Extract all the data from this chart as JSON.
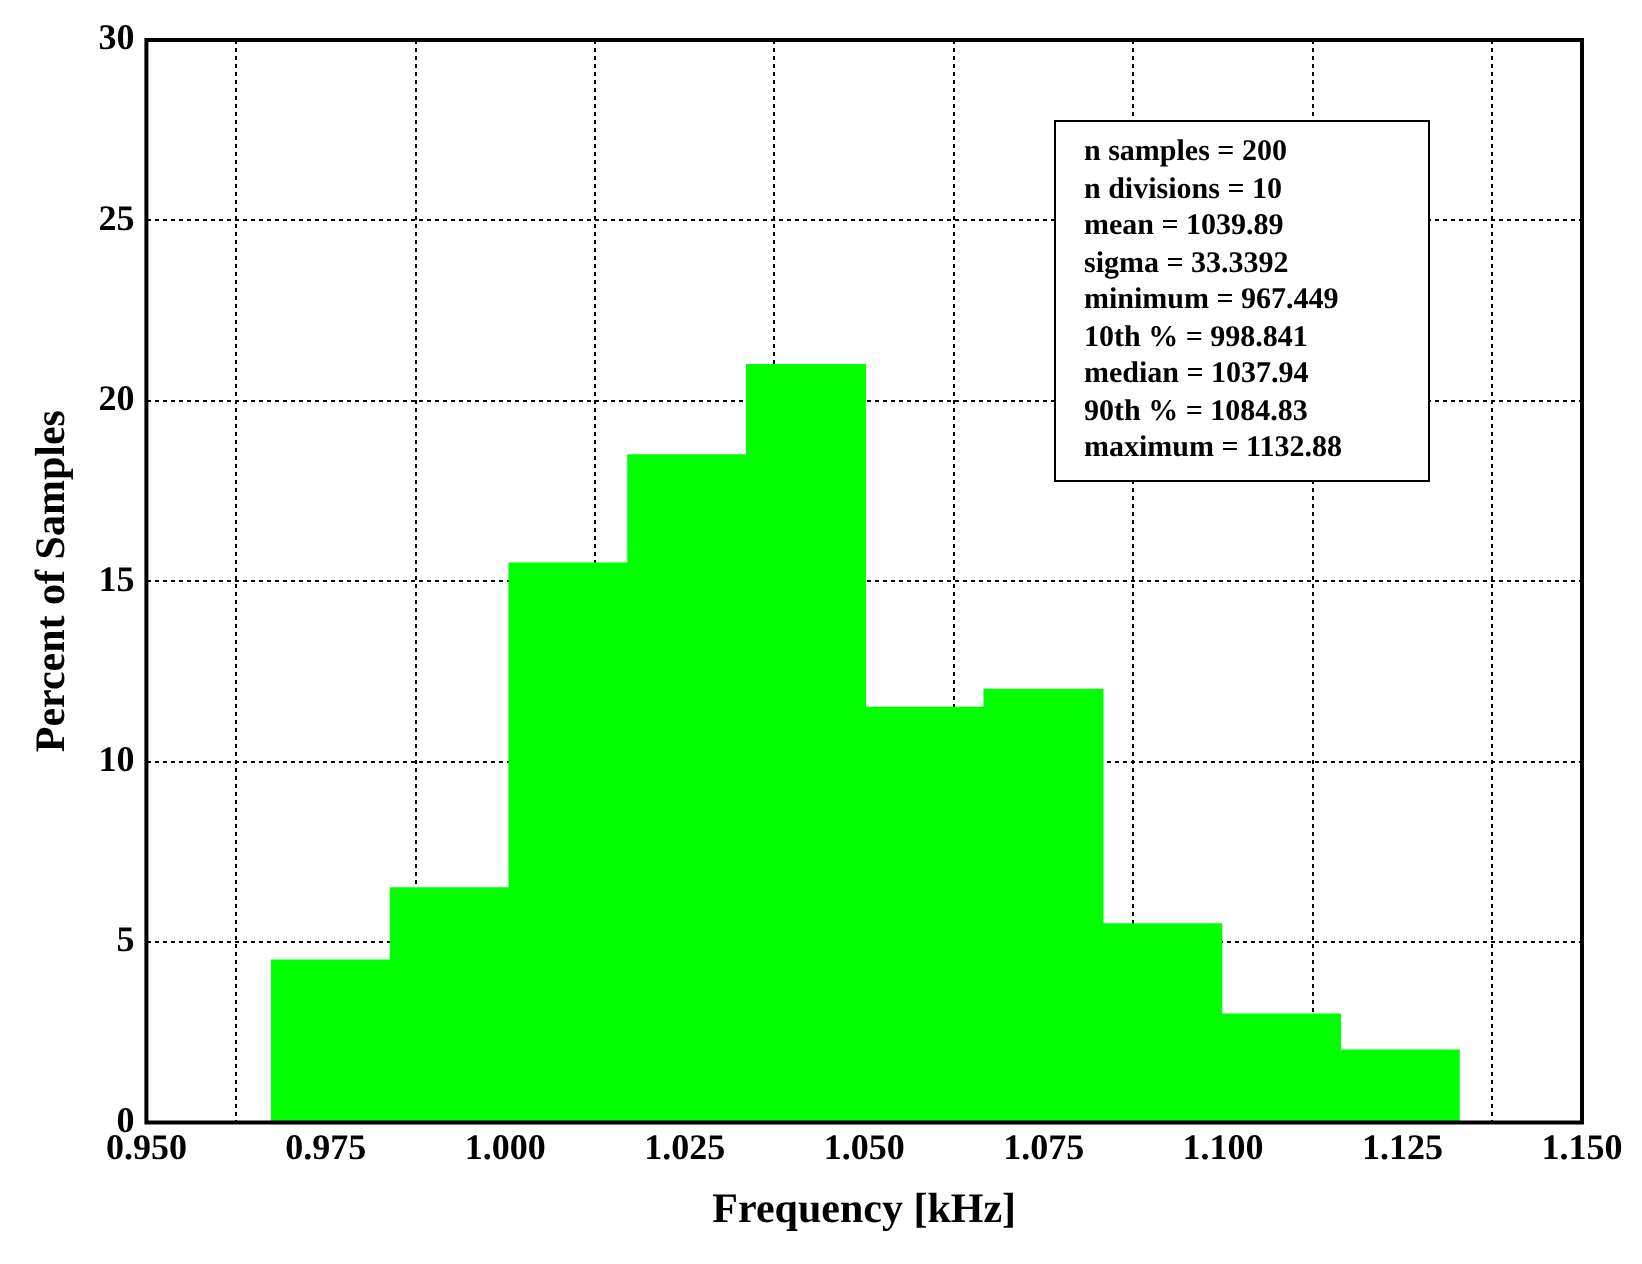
{
  "chart_data": {
    "type": "histogram",
    "xlabel": "Frequency [kHz]",
    "ylabel": "Percent of Samples",
    "bins": [
      0.967449,
      0.983992,
      1.000535,
      1.017078,
      1.033621,
      1.050164,
      1.066708,
      1.083251,
      1.099794,
      1.116337,
      1.13288
    ],
    "values": [
      4.5,
      6.5,
      15.5,
      18.5,
      21,
      11.5,
      12,
      5.5,
      3,
      2
    ],
    "color": "#00ff00",
    "xlim": [
      0.95,
      1.15
    ],
    "xticks": [
      {
        "value": 0.95,
        "label": "0.950"
      },
      {
        "value": 0.975,
        "label": "0.975"
      },
      {
        "value": 1.0,
        "label": "1.000"
      },
      {
        "value": 1.025,
        "label": "1.025"
      },
      {
        "value": 1.05,
        "label": "1.050"
      },
      {
        "value": 1.075,
        "label": "1.075"
      },
      {
        "value": 1.1,
        "label": "1.100"
      },
      {
        "value": 1.125,
        "label": "1.125"
      },
      {
        "value": 1.15,
        "label": "1.150"
      }
    ],
    "ylim": [
      0,
      30
    ],
    "yticks": [
      0,
      5,
      10,
      15,
      20,
      25,
      30
    ],
    "grid": true,
    "legend": false,
    "annotations": [
      "n samples = 200",
      "n divisions = 10",
      "mean = 1039.89",
      "sigma = 33.3392",
      "minimum = 967.449",
      "10th % = 998.841",
      "median = 1037.94",
      "90th % = 1084.83",
      "maximum = 1132.88"
    ]
  }
}
